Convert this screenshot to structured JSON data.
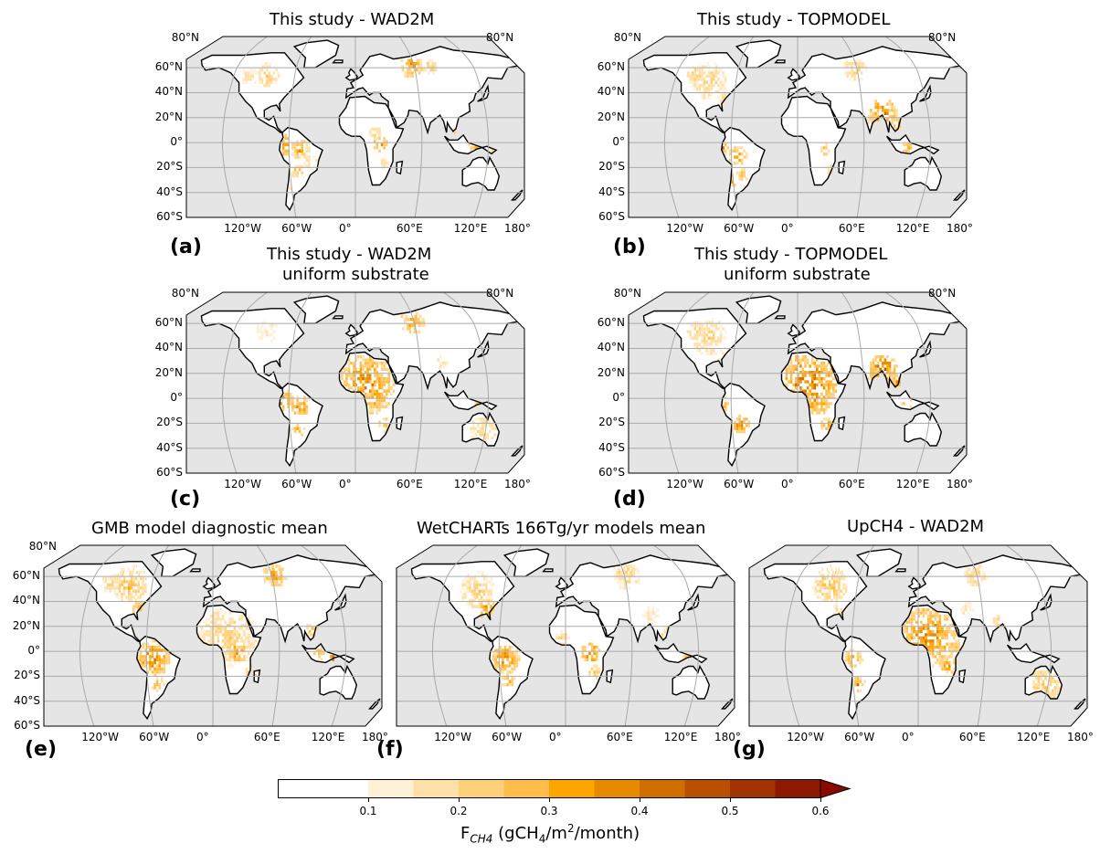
{
  "panels": [
    {
      "id": "a",
      "title": "This study - WAD2M",
      "title2": "",
      "letter": "(a)"
    },
    {
      "id": "b",
      "title": "This study - TOPMODEL",
      "title2": "",
      "letter": "(b)"
    },
    {
      "id": "c",
      "title": "This study - WAD2M",
      "title2": "uniform substrate",
      "letter": "(c)"
    },
    {
      "id": "d",
      "title": "This study - TOPMODEL",
      "title2": "uniform substrate",
      "letter": "(d)"
    },
    {
      "id": "e",
      "title": "GMB model diagnostic mean",
      "title2": "",
      "letter": "(e)"
    },
    {
      "id": "f",
      "title": "WetCHARTs 166Tg/yr models mean",
      "title2": "",
      "letter": "(f)"
    },
    {
      "id": "g",
      "title": "UpCH4 - WAD2M",
      "title2": "",
      "letter": "(g)"
    }
  ],
  "lat_labels": [
    "80°N",
    "60°N",
    "40°N",
    "20°N",
    "0°",
    "20°S",
    "40°S",
    "60°S"
  ],
  "lon_labels": [
    "120°W",
    "60°W",
    "0°",
    "60°E",
    "120°E",
    "180°"
  ],
  "colorbar": {
    "ticks": [
      "0.1",
      "0.2",
      "0.3",
      "0.4",
      "0.5",
      "0.6"
    ],
    "label_main": "F",
    "label_sub": "CH4",
    "label_units": " (gCH",
    "label_sub2": "4",
    "label_tail": "/m",
    "label_sup": "2",
    "label_end": "/month)",
    "colors": [
      "#ffffff",
      "#fff0d8",
      "#ffe0a8",
      "#ffd07a",
      "#ffbe4c",
      "#ffa500",
      "#e88a00",
      "#d06e00",
      "#b85000",
      "#a03300",
      "#8c1a00"
    ],
    "extend_color": "#8b0a00"
  },
  "colors": {
    "ocean": "#e5e5e5",
    "land": "#ffffff",
    "coast": "#000000",
    "grid": "#aaaaaa"
  }
}
